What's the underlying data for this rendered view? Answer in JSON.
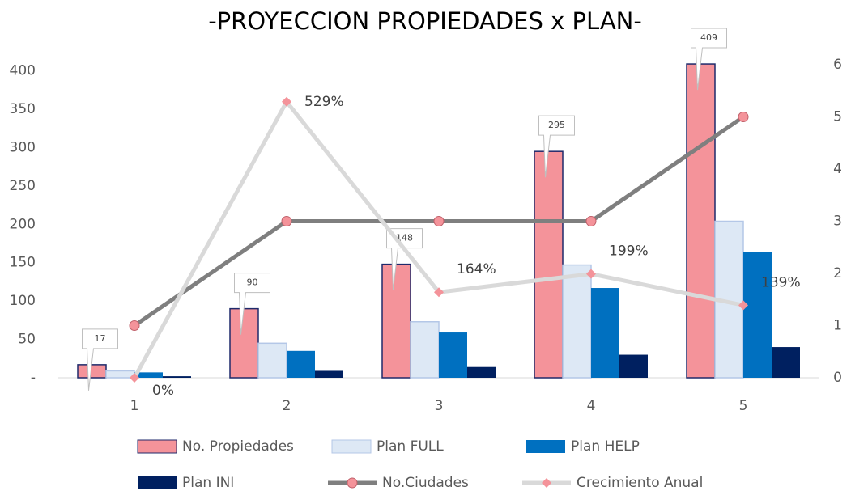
{
  "chart_data": {
    "type": "bar",
    "title": "-PROYECCION PROPIEDADES x PLAN-",
    "categories": [
      "1",
      "2",
      "3",
      "4",
      "5"
    ],
    "ylim": [
      0,
      408
    ],
    "yticks": [
      {
        "value": 0,
        "label": "-"
      },
      50,
      100,
      150,
      200,
      250,
      300,
      350,
      400
    ],
    "y2lim": [
      0,
      6
    ],
    "y2ticks": [
      0,
      1,
      2,
      3,
      4,
      5,
      6
    ],
    "legend": "bottom",
    "series": [
      {
        "name": "No. Propiedades",
        "type": "bar",
        "color": "#f4939a",
        "values": [
          17,
          90,
          148,
          295,
          409
        ]
      },
      {
        "name": "Plan FULL",
        "type": "bar",
        "color": "#dde8f5",
        "values": [
          9,
          45,
          73,
          147,
          204
        ]
      },
      {
        "name": "Plan HELP",
        "type": "bar",
        "color": "#0070c0",
        "values": [
          7,
          35,
          59,
          117,
          164
        ]
      },
      {
        "name": "Plan INI",
        "type": "bar",
        "color": "#002060",
        "values": [
          2,
          9,
          14,
          30,
          40
        ]
      },
      {
        "name": "No.Ciudades",
        "type": "line",
        "axis": "y2",
        "color": "#7f7f7f",
        "values": [
          1,
          3,
          3,
          3,
          5
        ]
      },
      {
        "name": "Crecimiento Anual",
        "type": "line",
        "axis": "y2",
        "color": "#d9d9d9",
        "values": [
          0,
          5.29,
          1.64,
          1.99,
          1.39
        ],
        "value_labels": [
          "0%",
          "529%",
          "164%",
          "199%",
          "139%"
        ]
      }
    ]
  }
}
